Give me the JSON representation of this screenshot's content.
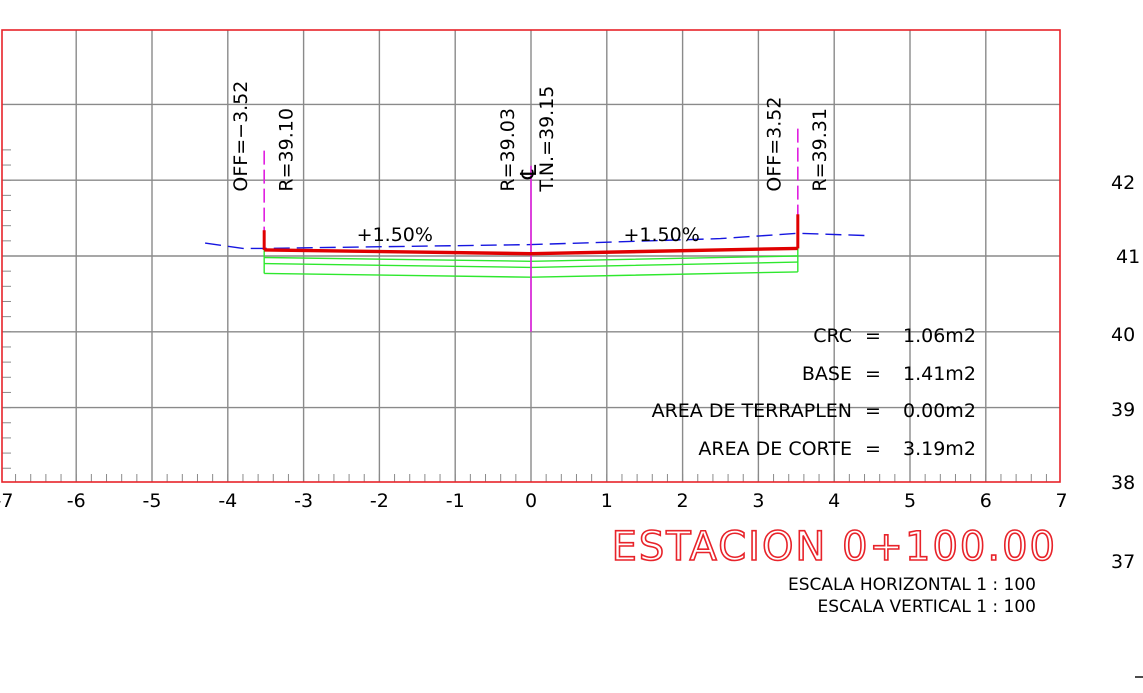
{
  "chart_data": {
    "type": "cross-section",
    "x_ticks": [
      "-7",
      "-6",
      "-5",
      "-4",
      "-3",
      "-2",
      "-1",
      "0",
      "1",
      "2",
      "3",
      "4",
      "5",
      "6",
      "7"
    ],
    "xlim": [
      -7,
      7
    ],
    "y_ticks_right": [
      {
        "label": "42",
        "value": 42
      },
      {
        "label": "41",
        "value": 41
      },
      {
        "label": "40",
        "value": 40
      },
      {
        "label": "39",
        "value": 39
      },
      {
        "label": "38",
        "value": 38
      },
      {
        "label": "37",
        "value": 37
      }
    ],
    "ylim": [
      38,
      42.1
    ],
    "design_surface": [
      [
        -3.52,
        41.08
      ],
      [
        0,
        41.03
      ],
      [
        3.52,
        41.1
      ]
    ],
    "design_edges": [
      [
        -3.52,
        41.08,
        41.34
      ],
      [
        3.52,
        41.1,
        41.55
      ]
    ],
    "layer_lines": [
      [
        [
          -3.52,
          40.98
        ],
        [
          0,
          40.93
        ],
        [
          3.52,
          41.0
        ]
      ],
      [
        [
          -3.52,
          40.9
        ],
        [
          0,
          40.85
        ],
        [
          3.52,
          40.92
        ]
      ],
      [
        [
          -3.52,
          40.77
        ],
        [
          0,
          40.72
        ],
        [
          3.52,
          40.79
        ]
      ]
    ],
    "ground_line": [
      [
        -4.3,
        41.17
      ],
      [
        -3.8,
        41.1
      ],
      [
        -3.52,
        41.1
      ],
      [
        0,
        41.15
      ],
      [
        2.5,
        41.23
      ],
      [
        3.52,
        41.3
      ],
      [
        4.4,
        41.27
      ]
    ],
    "offset_markers": [
      {
        "x": -3.52,
        "y_top": 42.39,
        "y_bottom": 41.08
      },
      {
        "x": 3.52,
        "y_top": 42.68,
        "y_bottom": 41.1
      }
    ],
    "centerline": {
      "x": 0,
      "y_top": 42.19,
      "y_bottom": 40.0
    },
    "labels": [
      {
        "text": "OFF=−3.52",
        "x": -3.82,
        "y": 41.85
      },
      {
        "text": "R=39.10",
        "x": -3.22,
        "y": 41.85
      },
      {
        "text": "R=39.03",
        "x": -0.3,
        "y": 41.85
      },
      {
        "text": "T.N.=39.15",
        "x": 0.22,
        "y": 41.85
      },
      {
        "text": "OFF=3.52",
        "x": 3.22,
        "y": 41.85
      },
      {
        "text": "R=39.31",
        "x": 3.82,
        "y": 41.85
      }
    ],
    "slopes": [
      {
        "text": "+1.50%",
        "x": -2.3,
        "y": 41.2
      },
      {
        "text": "+1.50%",
        "x": 1.22,
        "y": 41.2
      }
    ],
    "cl_symbol": "℄",
    "areas": [
      {
        "label": "CRC",
        "value": "1.06m2"
      },
      {
        "label": "BASE",
        "value": "1.41m2"
      },
      {
        "label": "AREA DE TERRAPLEN",
        "value": "0.00m2"
      },
      {
        "label": "AREA DE CORTE",
        "value": "3.19m2"
      }
    ],
    "station_title": "ESTACION 0+100.00",
    "scale_horizontal": "ESCALA HORIZONTAL 1 : 100",
    "scale_vertical": "ESCALA VERTICAL 1 : 100",
    "colors": {
      "frame": "#e8232a",
      "grid": "#8a8a8a",
      "design": "#e00000",
      "layers": "#2ee82e",
      "ground": "#1616e0",
      "markers": "#e01ee0",
      "text": "#000000",
      "title": "#e8232a"
    }
  }
}
